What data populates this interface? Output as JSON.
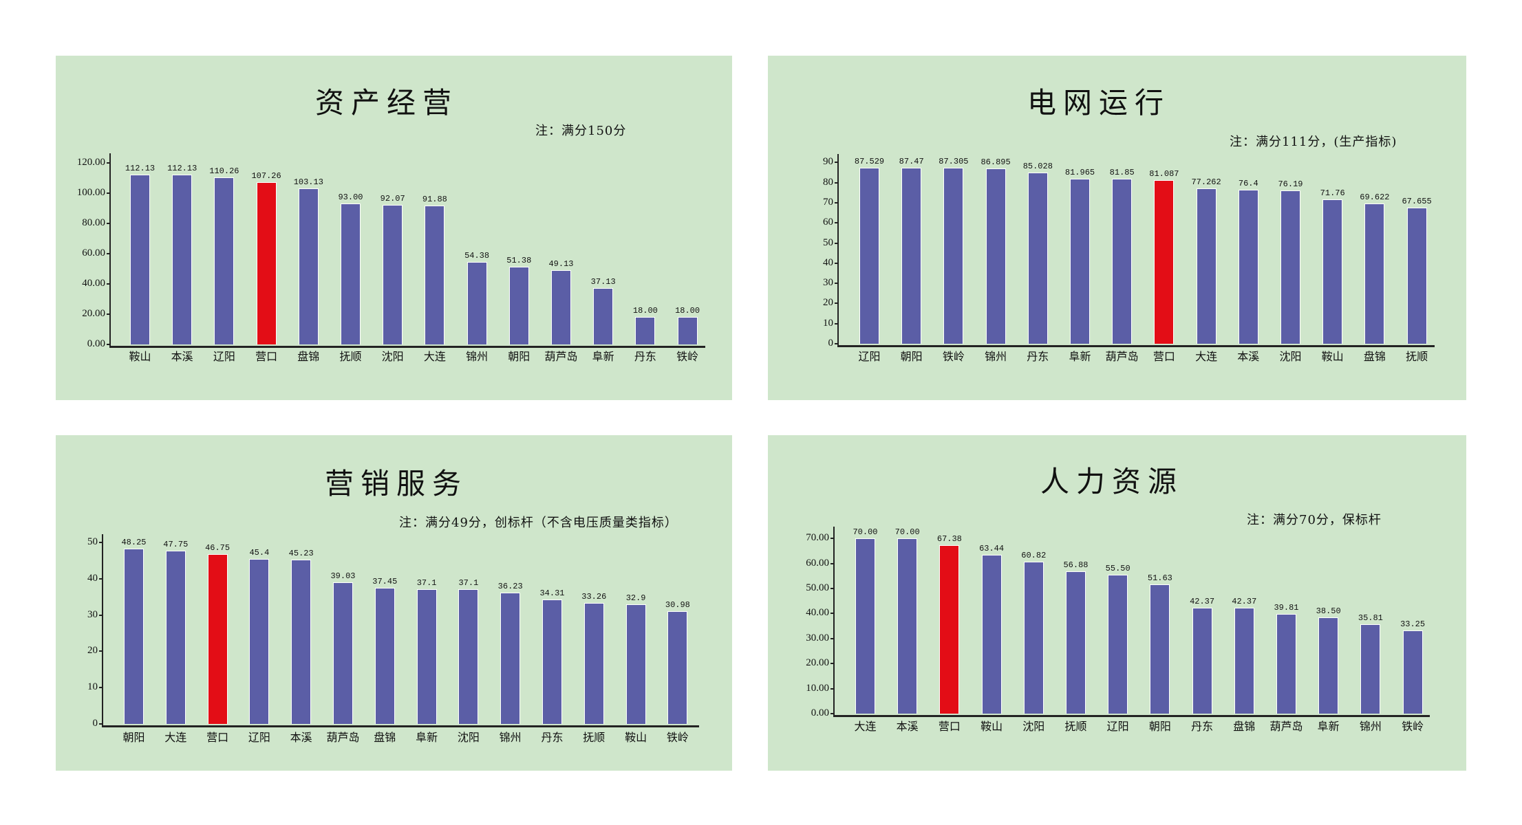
{
  "colors": {
    "page_background": "#ffffff",
    "panel_background": "#cfe6cb",
    "bar_default": "#5b5ea6",
    "bar_highlight": "#e30d16",
    "axis": "#222222",
    "text": "#111111"
  },
  "highlight_category": "营口",
  "chart_data": [
    {
      "type": "bar",
      "title": "资产经营",
      "note": "注：满分150分",
      "xlabel": "",
      "ylabel": "",
      "ylim": [
        0,
        125
      ],
      "yticks": [
        "0.00",
        "20.00",
        "40.00",
        "60.00",
        "80.00",
        "100.00",
        "120.00"
      ],
      "ytick_values": [
        0,
        20,
        40,
        60,
        80,
        100,
        120
      ],
      "grid": false,
      "legend": null,
      "categories": [
        "鞍山",
        "本溪",
        "辽阳",
        "营口",
        "盘锦",
        "抚顺",
        "沈阳",
        "大连",
        "锦州",
        "朝阳",
        "葫芦岛",
        "阜新",
        "丹东",
        "铁岭"
      ],
      "values": [
        112.13,
        112.13,
        110.26,
        107.26,
        103.13,
        93.0,
        92.07,
        91.88,
        54.38,
        51.38,
        49.13,
        37.13,
        18.0,
        18.0
      ],
      "value_labels": [
        "112.13",
        "112.13",
        "110.26",
        "107.26",
        "103.13",
        "93.00",
        "92.07",
        "91.88",
        "54.38",
        "51.38",
        "49.13",
        "37.13",
        "18.00",
        "18.00"
      ],
      "highlight_index": 3
    },
    {
      "type": "bar",
      "title": "电网运行",
      "note": "注：满分111分，(生产指标)",
      "xlabel": "",
      "ylabel": "",
      "ylim": [
        0,
        95
      ],
      "yticks": [
        "0",
        "10",
        "20",
        "30",
        "40",
        "50",
        "60",
        "70",
        "80",
        "90"
      ],
      "ytick_values": [
        0,
        10,
        20,
        30,
        40,
        50,
        60,
        70,
        80,
        90
      ],
      "grid": false,
      "legend": null,
      "categories": [
        "辽阳",
        "朝阳",
        "铁岭",
        "锦州",
        "丹东",
        "阜新",
        "葫芦岛",
        "营口",
        "大连",
        "本溪",
        "沈阳",
        "鞍山",
        "盘锦",
        "抚顺"
      ],
      "values": [
        87.529,
        87.47,
        87.305,
        86.895,
        85.028,
        81.965,
        81.85,
        81.087,
        77.262,
        76.4,
        76.19,
        71.76,
        69.622,
        67.655
      ],
      "value_labels": [
        "87.529",
        "87.47",
        "87.305",
        "86.895",
        "85.028",
        "81.965",
        "81.85",
        "81.087",
        "77.262",
        "76.4",
        "76.19",
        "71.76",
        "69.622",
        "67.655"
      ],
      "highlight_index": 7
    },
    {
      "type": "bar",
      "title": "营销服务",
      "note": "注：满分49分，创标杆（不含电压质量类指标）",
      "xlabel": "",
      "ylabel": "",
      "ylim": [
        0,
        52
      ],
      "yticks": [
        "0",
        "10",
        "20",
        "30",
        "40",
        "50"
      ],
      "ytick_values": [
        0,
        10,
        20,
        30,
        40,
        50
      ],
      "grid": false,
      "legend": null,
      "categories": [
        "朝阳",
        "大连",
        "营口",
        "辽阳",
        "本溪",
        "葫芦岛",
        "盘锦",
        "阜新",
        "沈阳",
        "锦州",
        "丹东",
        "抚顺",
        "鞍山",
        "铁岭"
      ],
      "values": [
        48.25,
        47.75,
        46.75,
        45.4,
        45.23,
        39.03,
        37.45,
        37.1,
        37.1,
        36.23,
        34.31,
        33.26,
        32.9,
        30.98
      ],
      "value_labels": [
        "48.25",
        "47.75",
        "46.75",
        "45.4",
        "45.23",
        "39.03",
        "37.45",
        "37.1",
        "37.1",
        "36.23",
        "34.31",
        "33.26",
        "32.9",
        "30.98"
      ],
      "highlight_index": 2
    },
    {
      "type": "bar",
      "title": "人力资源",
      "note": "注：满分70分，保标杆",
      "xlabel": "",
      "ylabel": "",
      "ylim": [
        0,
        74
      ],
      "yticks": [
        "0.00",
        "10.00",
        "20.00",
        "30.00",
        "40.00",
        "50.00",
        "60.00",
        "70.00"
      ],
      "ytick_values": [
        0,
        10,
        20,
        30,
        40,
        50,
        60,
        70
      ],
      "grid": false,
      "legend": null,
      "categories": [
        "大连",
        "本溪",
        "营口",
        "鞍山",
        "沈阳",
        "抚顺",
        "辽阳",
        "朝阳",
        "丹东",
        "盘锦",
        "葫芦岛",
        "阜新",
        "锦州",
        "铁岭"
      ],
      "values": [
        70.0,
        70.0,
        67.38,
        63.44,
        60.82,
        56.88,
        55.5,
        51.63,
        42.37,
        42.37,
        39.81,
        38.5,
        35.81,
        33.25
      ],
      "value_labels": [
        "70.00",
        "70.00",
        "67.38",
        "63.44",
        "60.82",
        "56.88",
        "55.50",
        "51.63",
        "42.37",
        "42.37",
        "39.81",
        "38.50",
        "35.81",
        "33.25"
      ],
      "highlight_index": 2
    }
  ]
}
